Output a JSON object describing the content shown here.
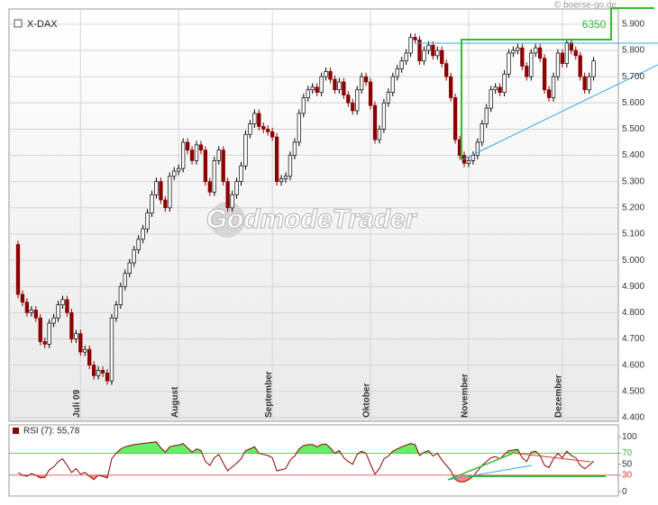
{
  "chart_data": [
    {
      "type": "candlestick",
      "title": "X-DAX",
      "watermark": "GodmodeTrader",
      "source": "© boerse-go.de",
      "annotation": "6350",
      "up_color": "#ffffff",
      "down_color": "#8b0000",
      "grid": true,
      "ylim": [
        4386,
        5958
      ],
      "yticks": [
        {
          "value": 4400,
          "label": "4.400"
        },
        {
          "value": 4500,
          "label": "4.500"
        },
        {
          "value": 4600,
          "label": "4.600"
        },
        {
          "value": 4700,
          "label": "4.700"
        },
        {
          "value": 4800,
          "label": "4.800"
        },
        {
          "value": 4900,
          "label": "4.900"
        },
        {
          "value": 5000,
          "label": "5.000"
        },
        {
          "value": 5100,
          "label": "5.100"
        },
        {
          "value": 5200,
          "label": "5.200"
        },
        {
          "value": 5300,
          "label": "5.300"
        },
        {
          "value": 5400,
          "label": "5.400"
        },
        {
          "value": 5500,
          "label": "5.500"
        },
        {
          "value": 5600,
          "label": "5.600"
        },
        {
          "value": 5700,
          "label": "5.700"
        },
        {
          "value": 5800,
          "label": "5.800"
        },
        {
          "value": 5900,
          "label": "5.900"
        }
      ],
      "categories": [
        null,
        null,
        null,
        null,
        null,
        null,
        null,
        null,
        null,
        null,
        null,
        null,
        null,
        null,
        "Juli 09",
        null,
        null,
        null,
        null,
        null,
        null,
        null,
        null,
        null,
        null,
        null,
        null,
        null,
        null,
        null,
        null,
        null,
        null,
        null,
        null,
        null,
        "August",
        null,
        null,
        null,
        null,
        null,
        null,
        null,
        null,
        null,
        null,
        null,
        null,
        null,
        null,
        null,
        null,
        null,
        null,
        null,
        null,
        "September",
        null,
        null,
        null,
        null,
        null,
        null,
        null,
        null,
        null,
        null,
        null,
        null,
        null,
        null,
        null,
        null,
        null,
        null,
        null,
        null,
        null,
        "Oktober",
        null,
        null,
        null,
        null,
        null,
        null,
        null,
        null,
        null,
        null,
        null,
        null,
        null,
        null,
        null,
        null,
        null,
        null,
        null,
        null,
        null,
        "November",
        null,
        null,
        null,
        null,
        null,
        null,
        null,
        null,
        null,
        null,
        null,
        null,
        null,
        null,
        null,
        null,
        null,
        null,
        null,
        null,
        "Dezember",
        null,
        null,
        null,
        null,
        null,
        null,
        null
      ],
      "candles": [
        [
          5060,
          5075,
          4855,
          4870
        ],
        [
          4870,
          4885,
          4825,
          4840
        ],
        [
          4840,
          4855,
          4785,
          4800
        ],
        [
          4800,
          4825,
          4785,
          4810
        ],
        [
          4810,
          4825,
          4765,
          4780
        ],
        [
          4780,
          4795,
          4675,
          4690
        ],
        [
          4690,
          4705,
          4665,
          4680
        ],
        [
          4680,
          4775,
          4665,
          4760
        ],
        [
          4760,
          4795,
          4745,
          4780
        ],
        [
          4780,
          4845,
          4765,
          4830
        ],
        [
          4830,
          4865,
          4815,
          4850
        ],
        [
          4850,
          4865,
          4785,
          4800
        ],
        [
          4800,
          4815,
          4685,
          4700
        ],
        [
          4700,
          4735,
          4685,
          4720
        ],
        [
          4720,
          4735,
          4635,
          4650
        ],
        [
          4650,
          4675,
          4635,
          4660
        ],
        [
          4660,
          4675,
          4585,
          4600
        ],
        [
          4600,
          4615,
          4545,
          4560
        ],
        [
          4560,
          4595,
          4545,
          4580
        ],
        [
          4580,
          4595,
          4555,
          4570
        ],
        [
          4570,
          4585,
          4525,
          4540
        ],
        [
          4540,
          4795,
          4525,
          4780
        ],
        [
          4780,
          4845,
          4765,
          4830
        ],
        [
          4830,
          4915,
          4815,
          4900
        ],
        [
          4900,
          4965,
          4885,
          4950
        ],
        [
          4950,
          5005,
          4935,
          4990
        ],
        [
          4990,
          5055,
          4975,
          5040
        ],
        [
          5040,
          5095,
          5025,
          5080
        ],
        [
          5080,
          5135,
          5065,
          5120
        ],
        [
          5120,
          5195,
          5105,
          5180
        ],
        [
          5180,
          5265,
          5165,
          5250
        ],
        [
          5250,
          5315,
          5235,
          5300
        ],
        [
          5300,
          5315,
          5215,
          5230
        ],
        [
          5230,
          5245,
          5185,
          5200
        ],
        [
          5200,
          5335,
          5185,
          5320
        ],
        [
          5320,
          5355,
          5305,
          5340
        ],
        [
          5340,
          5365,
          5325,
          5350
        ],
        [
          5350,
          5465,
          5335,
          5450
        ],
        [
          5450,
          5465,
          5405,
          5420
        ],
        [
          5420,
          5435,
          5365,
          5380
        ],
        [
          5380,
          5455,
          5365,
          5440
        ],
        [
          5440,
          5455,
          5405,
          5420
        ],
        [
          5420,
          5435,
          5285,
          5300
        ],
        [
          5300,
          5315,
          5245,
          5260
        ],
        [
          5260,
          5395,
          5245,
          5380
        ],
        [
          5380,
          5435,
          5365,
          5420
        ],
        [
          5420,
          5435,
          5285,
          5300
        ],
        [
          5300,
          5315,
          5185,
          5200
        ],
        [
          5200,
          5265,
          5185,
          5250
        ],
        [
          5250,
          5315,
          5235,
          5300
        ],
        [
          5300,
          5375,
          5285,
          5360
        ],
        [
          5360,
          5495,
          5345,
          5480
        ],
        [
          5480,
          5535,
          5465,
          5520
        ],
        [
          5520,
          5575,
          5505,
          5560
        ],
        [
          5560,
          5575,
          5495,
          5510
        ],
        [
          5510,
          5525,
          5485,
          5500
        ],
        [
          5500,
          5515,
          5475,
          5490
        ],
        [
          5490,
          5505,
          5455,
          5470
        ],
        [
          5470,
          5485,
          5285,
          5300
        ],
        [
          5300,
          5325,
          5285,
          5310
        ],
        [
          5310,
          5335,
          5295,
          5320
        ],
        [
          5320,
          5415,
          5305,
          5400
        ],
        [
          5400,
          5465,
          5385,
          5450
        ],
        [
          5450,
          5575,
          5435,
          5560
        ],
        [
          5560,
          5635,
          5545,
          5620
        ],
        [
          5620,
          5665,
          5605,
          5650
        ],
        [
          5650,
          5675,
          5635,
          5660
        ],
        [
          5660,
          5675,
          5625,
          5640
        ],
        [
          5640,
          5715,
          5625,
          5700
        ],
        [
          5700,
          5735,
          5685,
          5720
        ],
        [
          5720,
          5735,
          5675,
          5690
        ],
        [
          5690,
          5705,
          5635,
          5650
        ],
        [
          5650,
          5695,
          5635,
          5680
        ],
        [
          5680,
          5695,
          5615,
          5630
        ],
        [
          5630,
          5645,
          5585,
          5600
        ],
        [
          5600,
          5615,
          5555,
          5570
        ],
        [
          5570,
          5665,
          5555,
          5650
        ],
        [
          5650,
          5715,
          5635,
          5700
        ],
        [
          5700,
          5715,
          5665,
          5680
        ],
        [
          5680,
          5695,
          5575,
          5590
        ],
        [
          5590,
          5605,
          5445,
          5460
        ],
        [
          5460,
          5515,
          5445,
          5500
        ],
        [
          5500,
          5615,
          5485,
          5600
        ],
        [
          5600,
          5655,
          5585,
          5640
        ],
        [
          5640,
          5715,
          5625,
          5700
        ],
        [
          5700,
          5745,
          5685,
          5730
        ],
        [
          5730,
          5775,
          5715,
          5760
        ],
        [
          5760,
          5805,
          5745,
          5790
        ],
        [
          5790,
          5865,
          5775,
          5850
        ],
        [
          5850,
          5865,
          5825,
          5840
        ],
        [
          5840,
          5855,
          5745,
          5760
        ],
        [
          5760,
          5815,
          5745,
          5800
        ],
        [
          5800,
          5835,
          5785,
          5820
        ],
        [
          5820,
          5835,
          5765,
          5780
        ],
        [
          5780,
          5815,
          5765,
          5800
        ],
        [
          5800,
          5815,
          5735,
          5750
        ],
        [
          5750,
          5765,
          5685,
          5700
        ],
        [
          5700,
          5715,
          5605,
          5620
        ],
        [
          5620,
          5635,
          5445,
          5460
        ],
        [
          5460,
          5475,
          5385,
          5400
        ],
        [
          5400,
          5415,
          5355,
          5370
        ],
        [
          5370,
          5395,
          5355,
          5380
        ],
        [
          5380,
          5415,
          5365,
          5400
        ],
        [
          5400,
          5465,
          5385,
          5450
        ],
        [
          5450,
          5535,
          5435,
          5520
        ],
        [
          5520,
          5595,
          5505,
          5580
        ],
        [
          5580,
          5665,
          5565,
          5650
        ],
        [
          5650,
          5675,
          5635,
          5660
        ],
        [
          5660,
          5675,
          5625,
          5640
        ],
        [
          5640,
          5725,
          5625,
          5710
        ],
        [
          5710,
          5805,
          5695,
          5790
        ],
        [
          5790,
          5815,
          5775,
          5800
        ],
        [
          5800,
          5825,
          5785,
          5810
        ],
        [
          5810,
          5825,
          5725,
          5740
        ],
        [
          5740,
          5755,
          5685,
          5700
        ],
        [
          5700,
          5805,
          5685,
          5790
        ],
        [
          5790,
          5825,
          5775,
          5810
        ],
        [
          5810,
          5825,
          5755,
          5770
        ],
        [
          5770,
          5785,
          5635,
          5650
        ],
        [
          5650,
          5665,
          5605,
          5620
        ],
        [
          5620,
          5715,
          5605,
          5700
        ],
        [
          5700,
          5805,
          5685,
          5790
        ],
        [
          5790,
          5805,
          5735,
          5750
        ],
        [
          5750,
          5845,
          5735,
          5830
        ],
        [
          5830,
          5845,
          5785,
          5800
        ],
        [
          5800,
          5815,
          5765,
          5780
        ],
        [
          5780,
          5795,
          5685,
          5700
        ],
        [
          5700,
          5715,
          5635,
          5650
        ],
        [
          5650,
          5715,
          5635,
          5700
        ],
        [
          5700,
          5775,
          5685,
          5760
        ]
      ]
    },
    {
      "type": "line",
      "title": "RSI (7): 55,78",
      "color": "#8b0000",
      "ylim": [
        -8,
        122
      ],
      "yticks": [
        0,
        30,
        50,
        70,
        100
      ],
      "bands": [
        {
          "value": 70,
          "color": "#33bb33",
          "fill": "#66ee66"
        },
        {
          "value": 30,
          "color": "#dd3333",
          "fill": "#ff8888"
        }
      ],
      "values": [
        35,
        30,
        28,
        33,
        30,
        25,
        26,
        40,
        45,
        55,
        60,
        48,
        35,
        42,
        32,
        35,
        28,
        22,
        30,
        28,
        25,
        60,
        70,
        78,
        82,
        84,
        86,
        87,
        88,
        89,
        90,
        91,
        80,
        72,
        82,
        84,
        85,
        88,
        80,
        72,
        78,
        75,
        55,
        48,
        62,
        68,
        52,
        38,
        45,
        52,
        60,
        75,
        78,
        82,
        70,
        68,
        66,
        62,
        38,
        40,
        42,
        58,
        65,
        78,
        84,
        86,
        86,
        82,
        86,
        87,
        80,
        70,
        75,
        62,
        55,
        50,
        68,
        74,
        70,
        50,
        32,
        42,
        60,
        65,
        74,
        78,
        82,
        85,
        88,
        86,
        66,
        72,
        75,
        65,
        70,
        58,
        48,
        38,
        22,
        18,
        18,
        22,
        28,
        38,
        48,
        55,
        62,
        64,
        60,
        68,
        75,
        76,
        77,
        62,
        55,
        72,
        74,
        66,
        48,
        44,
        60,
        70,
        62,
        74,
        66,
        62,
        48,
        42,
        48,
        55.78
      ]
    }
  ]
}
